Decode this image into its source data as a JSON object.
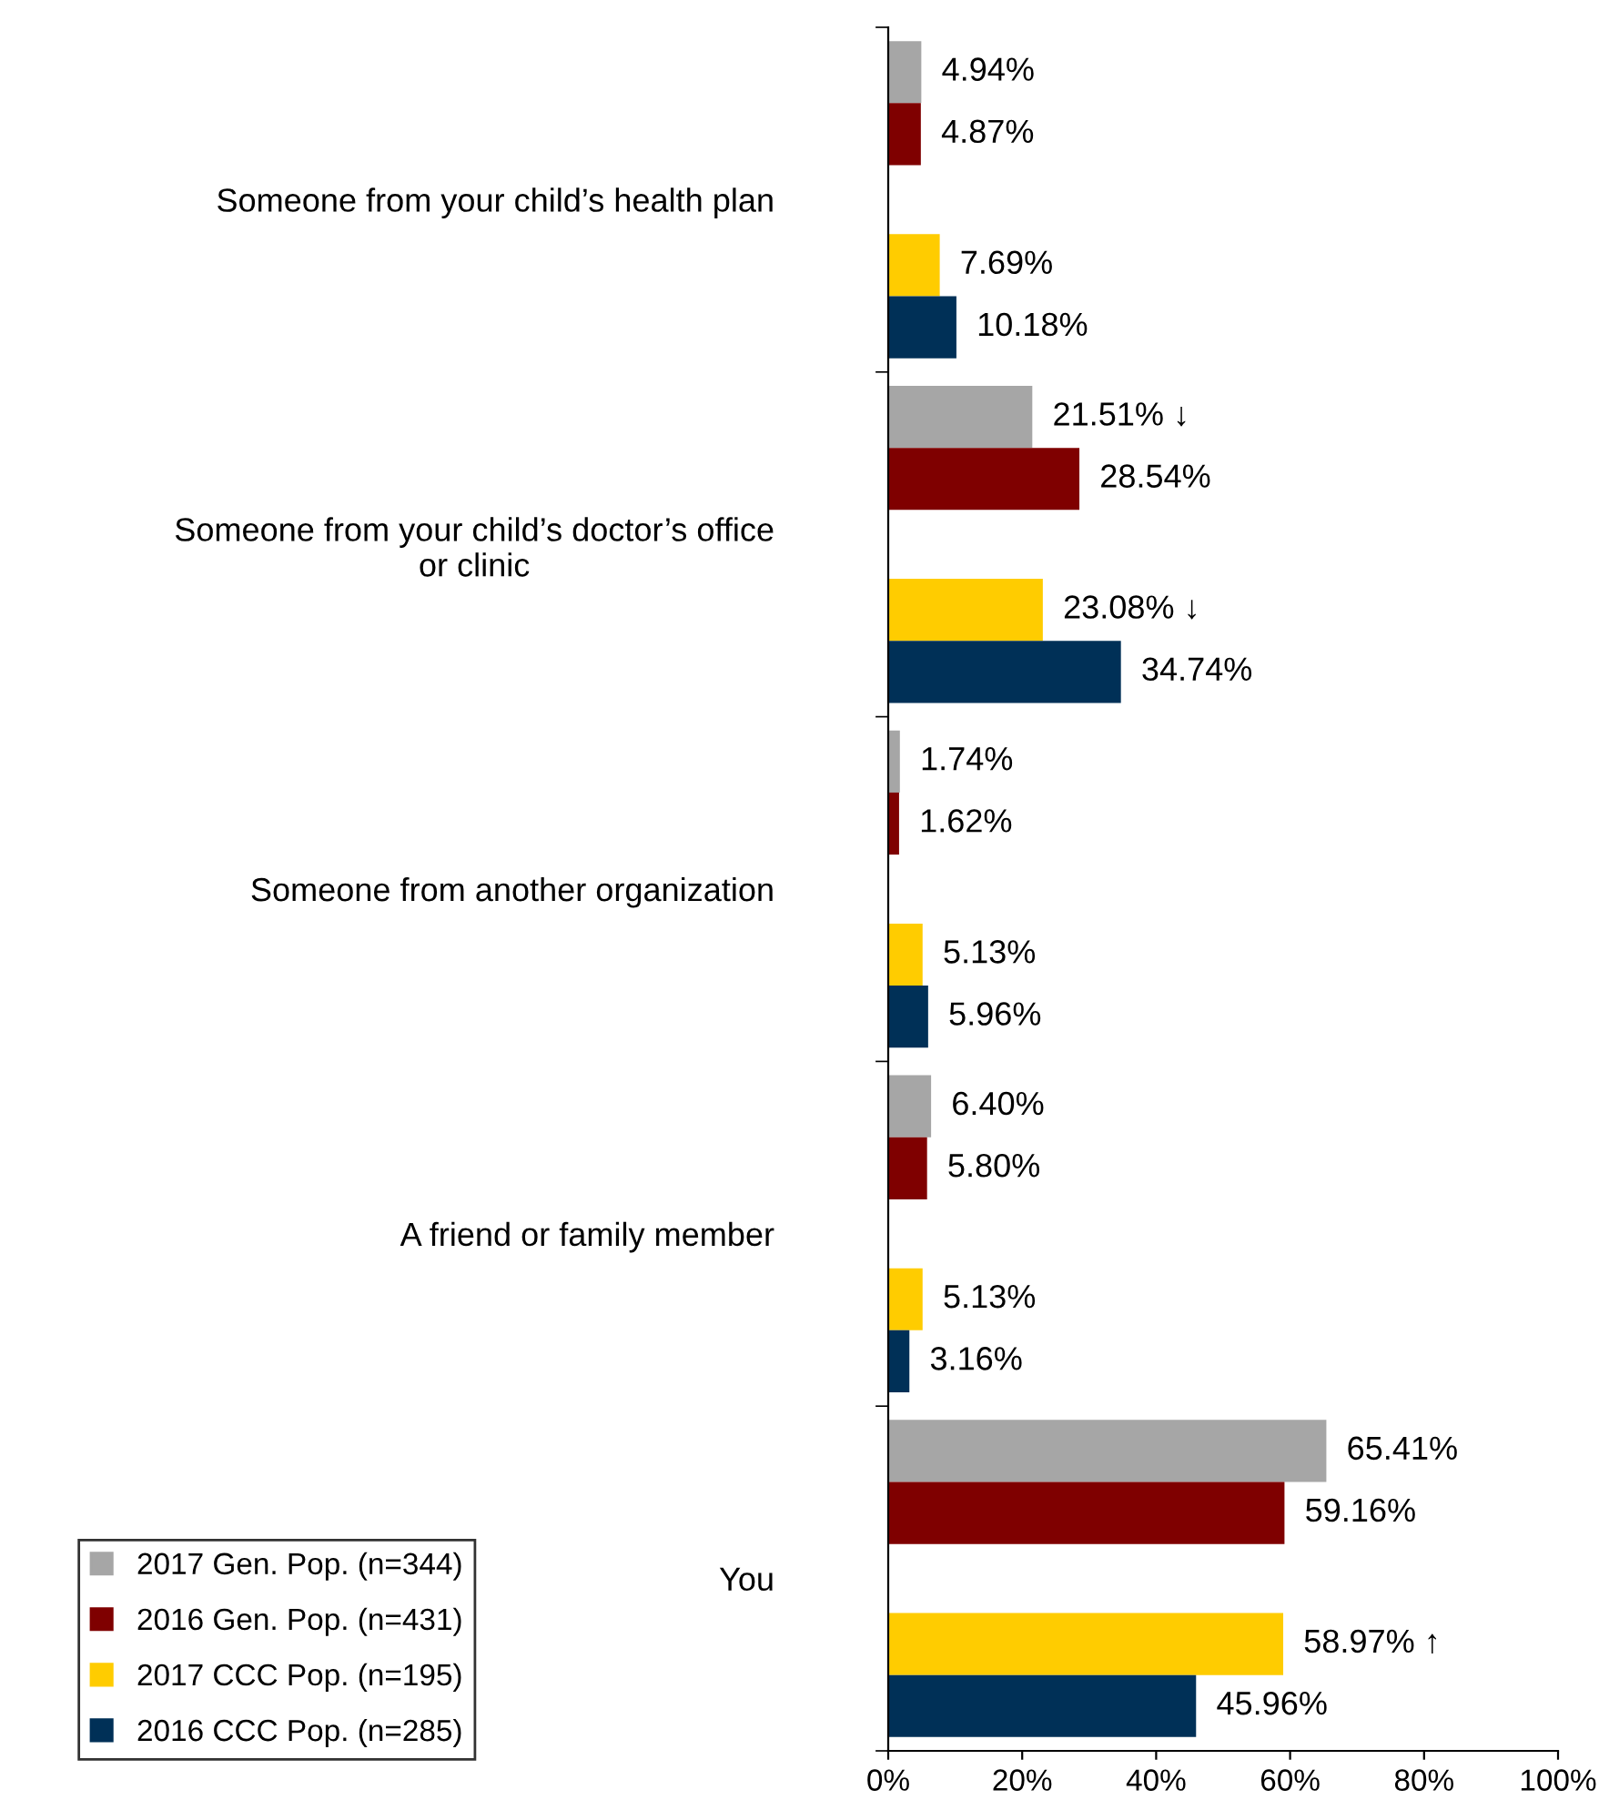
{
  "chart_data": {
    "type": "bar",
    "orientation": "horizontal",
    "categories": [
      "Someone from your child’s health plan",
      "Someone from your child’s doctor’s office\nor clinic",
      "Someone from another organization",
      "A friend or family member",
      "You"
    ],
    "series": [
      {
        "name": "2017 Gen. Pop. (n=344)",
        "color": "#a6a6a6",
        "values": [
          4.94,
          21.51,
          1.74,
          6.4,
          65.41
        ],
        "value_labels": [
          "4.94%",
          "21.51% ↓",
          "1.74%",
          "6.40%",
          "65.41%"
        ]
      },
      {
        "name": "2016 Gen. Pop. (n=431)",
        "color": "#7f0000",
        "values": [
          4.87,
          28.54,
          1.62,
          5.8,
          59.16
        ],
        "value_labels": [
          "4.87%",
          "28.54%",
          "1.62%",
          "5.80%",
          "59.16%"
        ]
      },
      {
        "name": "2017 CCC Pop. (n=195)",
        "color": "#ffcc00",
        "values": [
          7.69,
          23.08,
          5.13,
          5.13,
          58.97
        ],
        "value_labels": [
          "7.69%",
          "23.08% ↓",
          "5.13%",
          "5.13%",
          "58.97% ↑"
        ]
      },
      {
        "name": "2016 CCC Pop. (n=285)",
        "color": "#003057",
        "values": [
          10.18,
          34.74,
          5.96,
          3.16,
          45.96
        ],
        "value_labels": [
          "10.18%",
          "34.74%",
          "5.96%",
          "3.16%",
          "45.96%"
        ]
      }
    ],
    "xlim": [
      0,
      100
    ],
    "xticks": [
      {
        "value": 0,
        "label": "0%"
      },
      {
        "value": 20,
        "label": "20%"
      },
      {
        "value": 40,
        "label": "40%"
      },
      {
        "value": 60,
        "label": "60%"
      },
      {
        "value": 80,
        "label": "80%"
      },
      {
        "value": 100,
        "label": "100%"
      }
    ],
    "grid": false,
    "legend": "bottom left"
  }
}
